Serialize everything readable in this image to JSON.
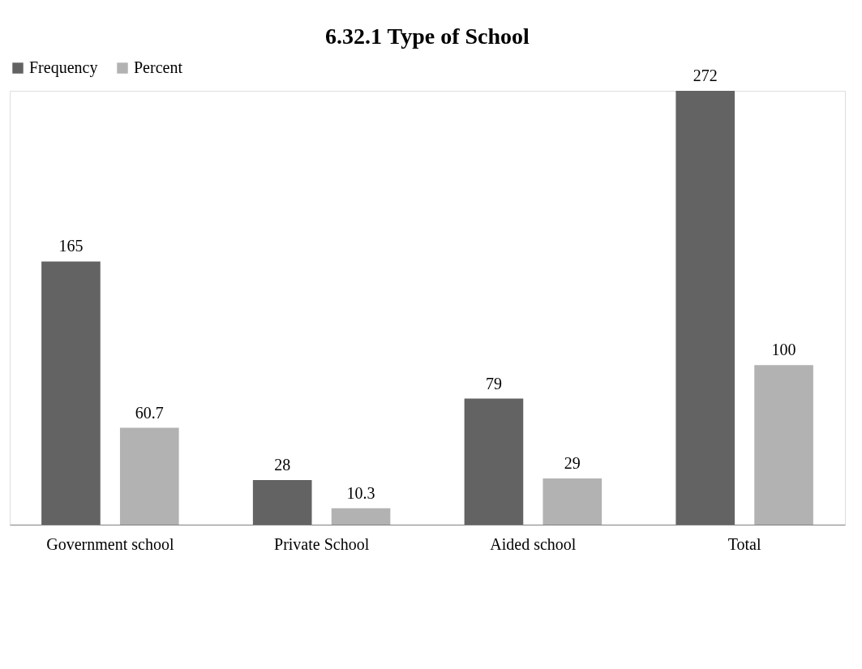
{
  "chart_data": {
    "type": "bar",
    "title": "6.32.1 Type of School",
    "categories": [
      "Government school",
      "Private School",
      "Aided school",
      "Total"
    ],
    "series": [
      {
        "name": "Frequency",
        "color": "#636363",
        "values": [
          165,
          28,
          79,
          272
        ]
      },
      {
        "name": "Percent",
        "color": "#b2b2b2",
        "values": [
          60.7,
          10.3,
          29,
          100
        ]
      }
    ],
    "data_labels": true,
    "legend": "top"
  }
}
